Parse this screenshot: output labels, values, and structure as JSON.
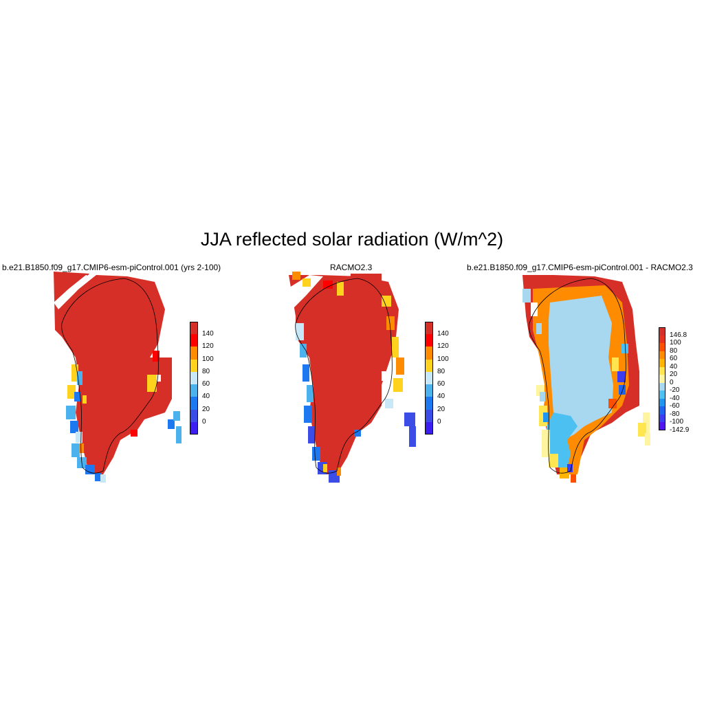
{
  "title": "JJA reflected solar radiation (W/m^2)",
  "panels": [
    {
      "id": "model",
      "title": "b.e21.B1850.f09_g17.CMIP6-esm-piControl.001 (yrs 2-100)",
      "colorbar": {
        "labels": [
          "140",
          "120",
          "100",
          "80",
          "60",
          "40",
          "20",
          "0"
        ],
        "colors": [
          "#d62f27",
          "#ff0000",
          "#ff8c00",
          "#ffd21e",
          "#c8e8f8",
          "#4cb2ee",
          "#1e78f0",
          "#3c4ce6",
          "#3c1ef0"
        ]
      }
    },
    {
      "id": "obs",
      "title": "RACMO2.3",
      "colorbar": {
        "labels": [
          "140",
          "120",
          "100",
          "80",
          "60",
          "40",
          "20",
          "0"
        ],
        "colors": [
          "#d62f27",
          "#ff0000",
          "#ff8c00",
          "#ffd21e",
          "#c8e8f8",
          "#4cb2ee",
          "#1e78f0",
          "#3c4ce6",
          "#3c1ef0"
        ]
      }
    },
    {
      "id": "diff",
      "title": "b.e21.B1850.f09_g17.CMIP6-esm-piControl.001 - RACMO2.3",
      "colorbar": {
        "labels": [
          "146.8",
          "100",
          "80",
          "60",
          "40",
          "20",
          "0",
          "-20",
          "-40",
          "-60",
          "-80",
          "-100",
          "-142.9"
        ],
        "colors": [
          "#d62f27",
          "#e6321e",
          "#ff5000",
          "#ff8c00",
          "#ffb400",
          "#ffe650",
          "#fff5a0",
          "#a8d8f0",
          "#4cc0f0",
          "#1e96f0",
          "#1e64f0",
          "#3c3cf0",
          "#5014f0"
        ]
      }
    }
  ]
}
